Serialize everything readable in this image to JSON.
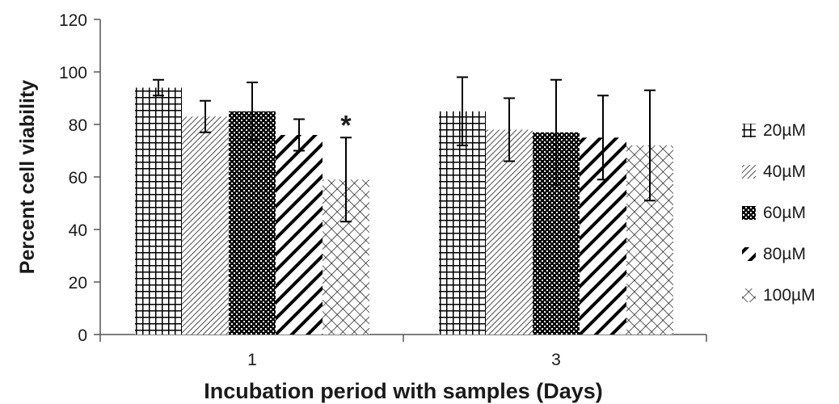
{
  "chart_data": {
    "type": "bar",
    "xlabel": "Incubation period with samples (Days)",
    "ylabel": "Percent cell viability",
    "ylim": [
      0,
      120
    ],
    "yticks": [
      0,
      20,
      40,
      60,
      80,
      100,
      120
    ],
    "categories": [
      "1",
      "3"
    ],
    "legend_position": "right",
    "series": [
      {
        "name": "20µM",
        "pattern": "grid",
        "values": [
          94,
          85
        ],
        "errors": [
          3,
          13
        ]
      },
      {
        "name": "40µM",
        "pattern": "fine-diag",
        "values": [
          83,
          78
        ],
        "errors": [
          6,
          12
        ]
      },
      {
        "name": "60µM",
        "pattern": "checker",
        "values": [
          85,
          77
        ],
        "errors": [
          11,
          20
        ]
      },
      {
        "name": "80µM",
        "pattern": "wide-diag",
        "values": [
          76,
          75
        ],
        "errors": [
          6,
          16
        ]
      },
      {
        "name": "100µM",
        "pattern": "crosshatch",
        "values": [
          59,
          72
        ],
        "errors": [
          16,
          21
        ]
      }
    ],
    "annotations": [
      {
        "text": "*",
        "category": "1",
        "series": "100µM"
      }
    ]
  }
}
